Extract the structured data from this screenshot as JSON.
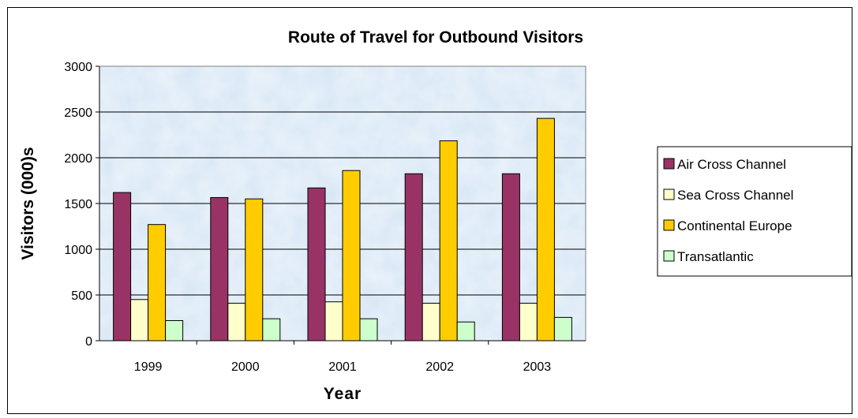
{
  "chart_data": {
    "type": "bar",
    "title": "Route of Travel for Outbound Visitors",
    "xlabel": "Year",
    "ylabel": "Visitors (000)s",
    "ylim": [
      0,
      3000
    ],
    "yticks": [
      0,
      500,
      1000,
      1500,
      2000,
      2500,
      3000
    ],
    "categories": [
      "1999",
      "2000",
      "2001",
      "2002",
      "2003"
    ],
    "series": [
      {
        "name": "Air Cross Channel",
        "color": "#993366",
        "values": [
          1620,
          1565,
          1670,
          1825,
          1825
        ]
      },
      {
        "name": "Sea Cross Channel",
        "color": "#FFFFCC",
        "values": [
          450,
          410,
          425,
          410,
          410
        ]
      },
      {
        "name": "Continental Europe",
        "color": "#FFCC00",
        "values": [
          1270,
          1550,
          1860,
          2185,
          2430
        ]
      },
      {
        "name": "Transatlantic",
        "color": "#CCFFCC",
        "values": [
          220,
          240,
          240,
          205,
          255
        ]
      }
    ],
    "grid": true,
    "legend_position": "right",
    "plot_background": "#D6E6F5"
  }
}
